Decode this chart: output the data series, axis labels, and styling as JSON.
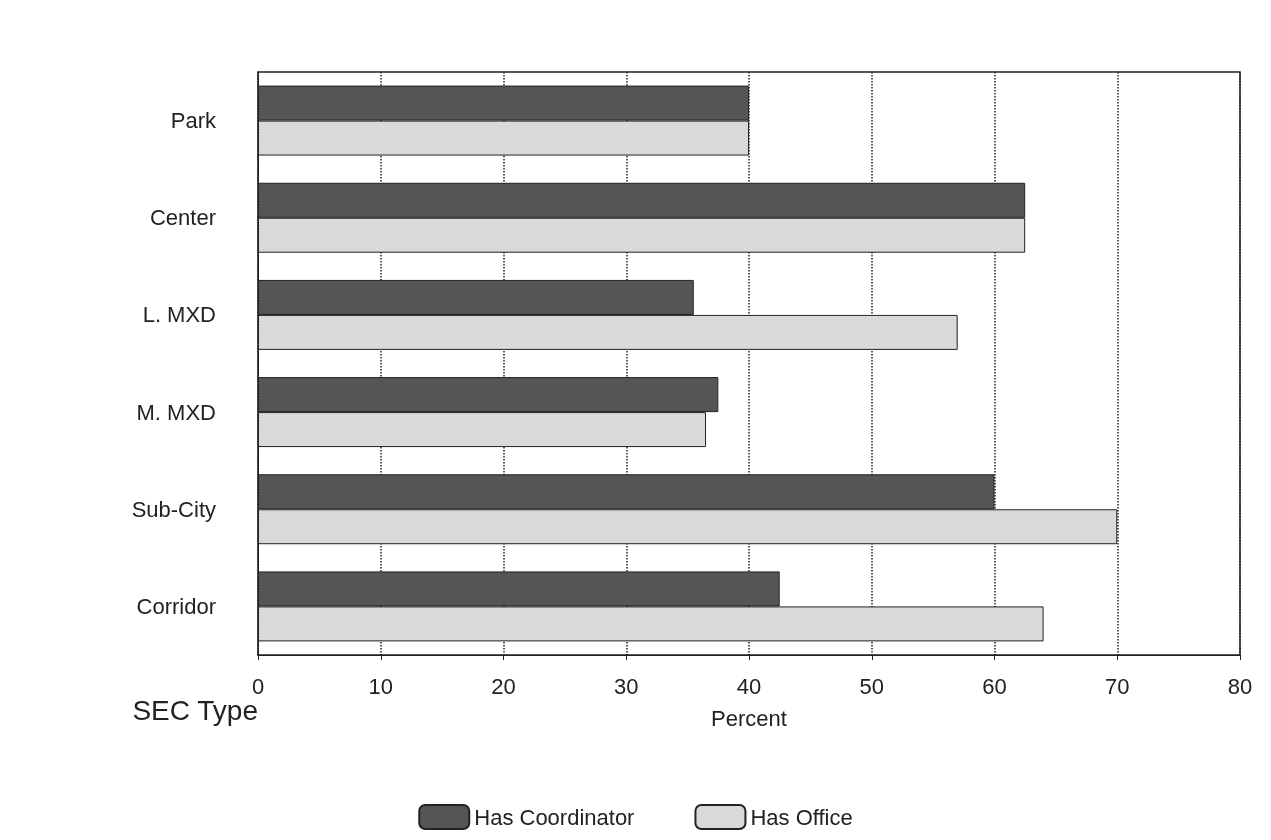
{
  "chart_data": {
    "type": "bar",
    "orientation": "horizontal",
    "ylabel": "SEC Type",
    "xlabel": "Percent",
    "categories": [
      "Park",
      "Center",
      "L. MXD",
      "M. MXD",
      "Sub-City",
      "Corridor"
    ],
    "series": [
      {
        "name": "Has Coordinator",
        "color": "#555555",
        "values": [
          40,
          62.5,
          35.5,
          37.5,
          60,
          42.5
        ]
      },
      {
        "name": "Has Office",
        "color": "#d9d9d9",
        "values": [
          40,
          62.5,
          57,
          36.5,
          70,
          64
        ]
      }
    ],
    "xlim": [
      0,
      80
    ],
    "xticks": [
      0,
      10,
      20,
      30,
      40,
      50,
      60,
      70,
      80
    ],
    "grid": "x",
    "legend": "bottom"
  }
}
